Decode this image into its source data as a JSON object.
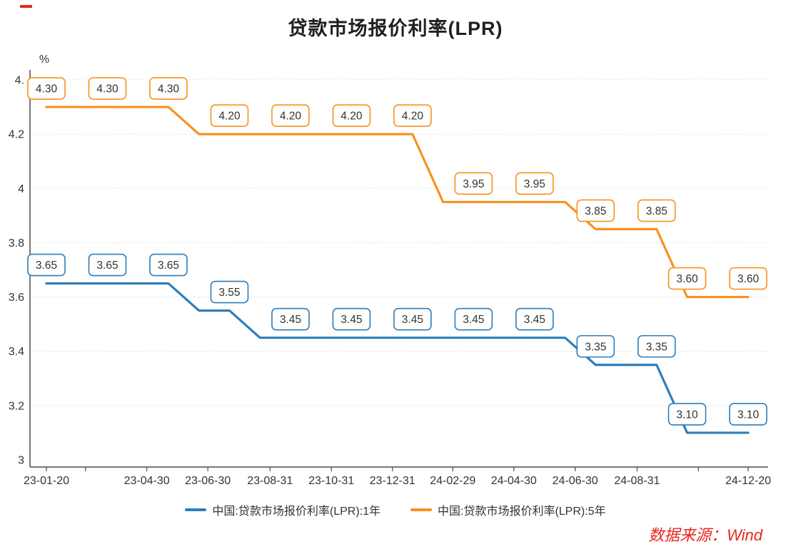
{
  "page": {
    "title": "贷款市场报价利率(LPR)",
    "source_text": "数据来源：Wind",
    "accent_red": "#e8261d",
    "text_color": "#333333",
    "axis_color": "#4d4d4d",
    "grid_color": "#e6e6e6"
  },
  "legend": {
    "items": [
      {
        "label": "中国:贷款市场报价利率(LPR):1年",
        "color": "#2e7ebb"
      },
      {
        "label": "中国:贷款市场报价利率(LPR):5年",
        "color": "#f6931d"
      }
    ]
  },
  "chart_data": {
    "type": "line",
    "title": "贷款市场报价利率(LPR)",
    "xlabel": "",
    "ylabel": "%",
    "ylim": [
      3.0,
      4.4
    ],
    "grid": true,
    "legend_position": "bottom",
    "x_span_months": 23,
    "x_start": "2023-01-20",
    "x_end": "2024-12-20",
    "yticks": [
      {
        "v": 4.4,
        "label": "4."
      },
      {
        "v": 4.2,
        "label": "4.2"
      },
      {
        "v": 4.0,
        "label": "4"
      },
      {
        "v": 3.8,
        "label": "3.8"
      },
      {
        "v": 3.6,
        "label": "3.6"
      },
      {
        "v": 3.4,
        "label": "3.4"
      },
      {
        "v": 3.2,
        "label": "3.2"
      },
      {
        "v": 3.0,
        "label": "3"
      }
    ],
    "xticks": [
      {
        "m": 0,
        "label": "23-01-20"
      },
      {
        "m": 1.28,
        "label": ""
      },
      {
        "m": 3.29,
        "label": "23-04-30"
      },
      {
        "m": 5.29,
        "label": "23-06-30"
      },
      {
        "m": 7.33,
        "label": "23-08-31"
      },
      {
        "m": 9.34,
        "label": "23-10-31"
      },
      {
        "m": 11.34,
        "label": "23-12-31"
      },
      {
        "m": 13.32,
        "label": "24-02-29"
      },
      {
        "m": 15.32,
        "label": "24-04-30"
      },
      {
        "m": 17.33,
        "label": "24-06-30"
      },
      {
        "m": 19.36,
        "label": "24-08-31"
      },
      {
        "m": 21.37,
        "label": ""
      },
      {
        "m": 23,
        "label": "24-12-20"
      }
    ],
    "series": [
      {
        "name": "中国:贷款市场报价利率(LPR):1年",
        "color": "#2e7ebb",
        "values": [
          3.65,
          3.65,
          3.65,
          3.65,
          3.65,
          3.55,
          3.55,
          3.45,
          3.45,
          3.45,
          3.45,
          3.45,
          3.45,
          3.45,
          3.45,
          3.45,
          3.45,
          3.45,
          3.35,
          3.35,
          3.35,
          3.1,
          3.1,
          3.1
        ],
        "labels": [
          {
            "m": 0,
            "text": "3.65"
          },
          {
            "m": 2,
            "text": "3.65"
          },
          {
            "m": 4,
            "text": "3.65"
          },
          {
            "m": 6,
            "text": "3.55"
          },
          {
            "m": 8,
            "text": "3.45"
          },
          {
            "m": 10,
            "text": "3.45"
          },
          {
            "m": 12,
            "text": "3.45"
          },
          {
            "m": 14,
            "text": "3.45"
          },
          {
            "m": 16,
            "text": "3.45"
          },
          {
            "m": 18,
            "text": "3.35"
          },
          {
            "m": 20,
            "text": "3.35"
          },
          {
            "m": 21,
            "text": "3.10"
          },
          {
            "m": 23,
            "text": "3.10"
          }
        ]
      },
      {
        "name": "中国:贷款市场报价利率(LPR):5年",
        "color": "#f6931d",
        "values": [
          4.3,
          4.3,
          4.3,
          4.3,
          4.3,
          4.2,
          4.2,
          4.2,
          4.2,
          4.2,
          4.2,
          4.2,
          4.2,
          3.95,
          3.95,
          3.95,
          3.95,
          3.95,
          3.85,
          3.85,
          3.85,
          3.6,
          3.6,
          3.6
        ],
        "labels": [
          {
            "m": 0,
            "text": "4.30"
          },
          {
            "m": 2,
            "text": "4.30"
          },
          {
            "m": 4,
            "text": "4.30"
          },
          {
            "m": 6,
            "text": "4.20"
          },
          {
            "m": 8,
            "text": "4.20"
          },
          {
            "m": 10,
            "text": "4.20"
          },
          {
            "m": 12,
            "text": "4.20"
          },
          {
            "m": 14,
            "text": "3.95"
          },
          {
            "m": 16,
            "text": "3.95"
          },
          {
            "m": 18,
            "text": "3.85"
          },
          {
            "m": 20,
            "text": "3.85"
          },
          {
            "m": 21,
            "text": "3.60"
          },
          {
            "m": 23,
            "text": "3.60"
          }
        ]
      }
    ]
  }
}
